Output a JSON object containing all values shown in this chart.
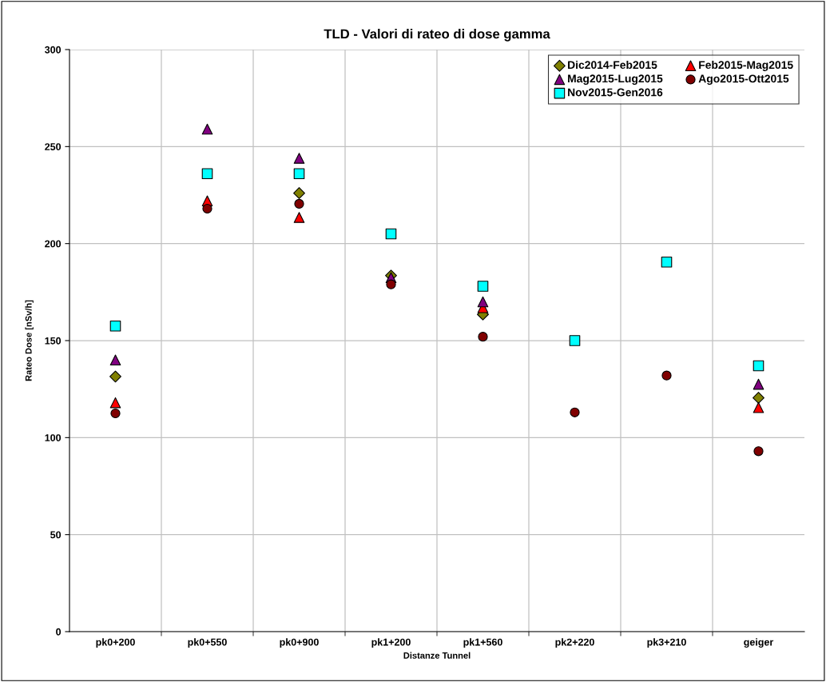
{
  "chart_data": {
    "type": "scatter",
    "title": "TLD - Valori di rateo di dose gamma",
    "xlabel": "Distanze Tunnel",
    "ylabel": "Rateo Dose [nSv/h]",
    "categories": [
      "pk0+200",
      "pk0+550",
      "pk0+900",
      "pk1+200",
      "pk1+560",
      "pk2+220",
      "pk3+210",
      "geiger"
    ],
    "series": [
      {
        "name": "Dic2014-Feb2015",
        "color": "#808000",
        "marker": "diamond",
        "values": [
          131.5,
          null,
          226,
          183.5,
          163.5,
          null,
          null,
          120.5
        ]
      },
      {
        "name": "Feb2015-Mag2015",
        "color": "#ff0000",
        "marker": "triangle",
        "values": [
          118,
          222,
          213.5,
          null,
          167,
          null,
          null,
          115.5
        ]
      },
      {
        "name": "Mag2015-Lug2015",
        "color": "#800080",
        "marker": "triangle",
        "values": [
          140,
          259,
          244,
          182.5,
          170,
          null,
          null,
          127.5
        ]
      },
      {
        "name": "Ago2015-Ott2015",
        "color": "#800000",
        "marker": "circle",
        "values": [
          112.5,
          218,
          220.5,
          179,
          152,
          113,
          132,
          93
        ]
      },
      {
        "name": "Nov2015-Gen2016",
        "color": "#00ffff",
        "marker": "square",
        "values": [
          157.5,
          236,
          236,
          205,
          178,
          150,
          190.5,
          137
        ]
      }
    ],
    "ylim": [
      0,
      300
    ],
    "yticks": [
      0,
      50,
      100,
      150,
      200,
      250,
      300
    ],
    "grid": true,
    "legend": "top right"
  }
}
